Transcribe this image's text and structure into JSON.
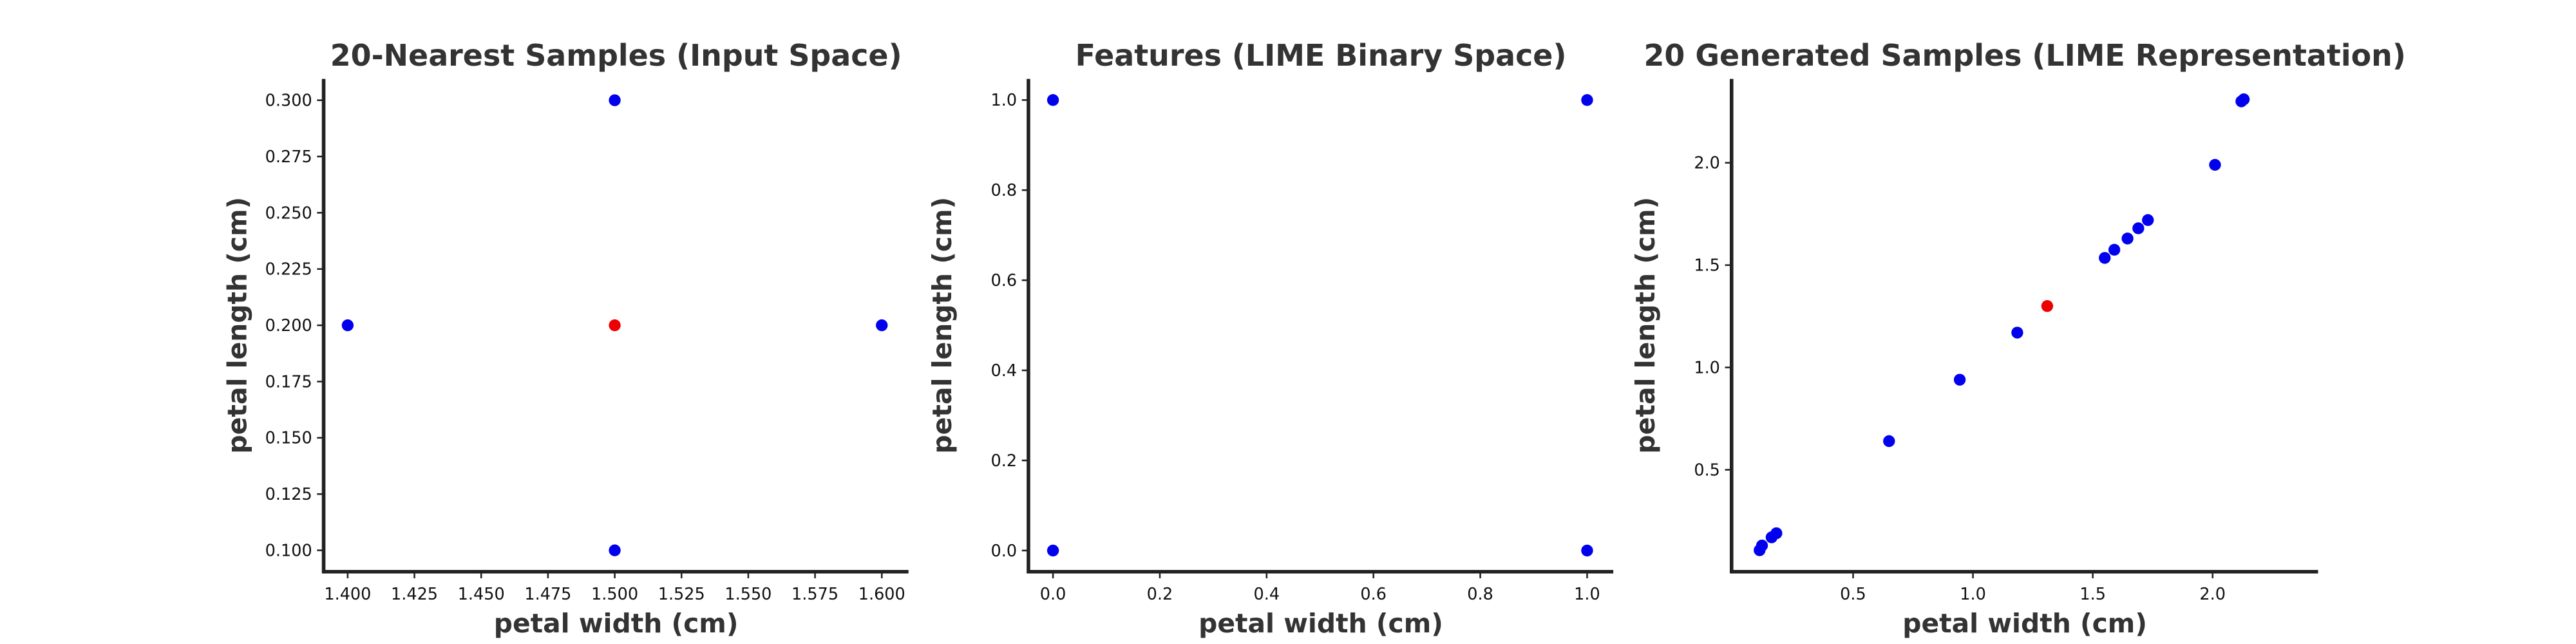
{
  "chart_data": [
    {
      "type": "scatter",
      "title": "20-Nearest Samples (Input Space)",
      "x_label": "petal width (cm)",
      "y_label": "petal length (cm)",
      "xlim": [
        1.391,
        1.61
      ],
      "ylim": [
        0.0905,
        0.3095
      ],
      "xticks": [
        {
          "value": 1.4,
          "label": "1.400"
        },
        {
          "value": 1.425,
          "label": "1.425"
        },
        {
          "value": 1.45,
          "label": "1.450"
        },
        {
          "value": 1.475,
          "label": "1.475"
        },
        {
          "value": 1.5,
          "label": "1.500"
        },
        {
          "value": 1.525,
          "label": "1.525"
        },
        {
          "value": 1.55,
          "label": "1.550"
        },
        {
          "value": 1.575,
          "label": "1.575"
        },
        {
          "value": 1.6,
          "label": "1.600"
        }
      ],
      "yticks": [
        {
          "value": 0.1,
          "label": "0.100"
        },
        {
          "value": 0.125,
          "label": "0.125"
        },
        {
          "value": 0.15,
          "label": "0.150"
        },
        {
          "value": 0.175,
          "label": "0.175"
        },
        {
          "value": 0.2,
          "label": "0.200"
        },
        {
          "value": 0.225,
          "label": "0.225"
        },
        {
          "value": 0.25,
          "label": "0.250"
        },
        {
          "value": 0.275,
          "label": "0.275"
        },
        {
          "value": 0.3,
          "label": "0.300"
        }
      ],
      "series": [
        {
          "color": "#0000ee",
          "x": [
            1.5,
            1.4,
            1.6,
            1.5
          ],
          "values": [
            0.3,
            0.2,
            0.2,
            0.1
          ]
        },
        {
          "color": "#ee0000",
          "x": [
            1.5
          ],
          "values": [
            0.2
          ]
        }
      ]
    },
    {
      "type": "scatter",
      "title": "Features (LIME Binary Space)",
      "x_label": "petal width (cm)",
      "y_label": "petal length (cm)",
      "xlim": [
        -0.046,
        1.049
      ],
      "ylim": [
        -0.047,
        1.047
      ],
      "xticks": [
        {
          "value": 0,
          "label": "0.0"
        },
        {
          "value": 0.2,
          "label": "0.2"
        },
        {
          "value": 0.4,
          "label": "0.4"
        },
        {
          "value": 0.6,
          "label": "0.6"
        },
        {
          "value": 0.8,
          "label": "0.8"
        },
        {
          "value": 1,
          "label": "1.0"
        }
      ],
      "yticks": [
        {
          "value": 0,
          "label": "0.0"
        },
        {
          "value": 0.2,
          "label": "0.2"
        },
        {
          "value": 0.4,
          "label": "0.4"
        },
        {
          "value": 0.6,
          "label": "0.6"
        },
        {
          "value": 0.8,
          "label": "0.8"
        },
        {
          "value": 1,
          "label": "1.0"
        }
      ],
      "series": [
        {
          "color": "#0000ee",
          "x": [
            0,
            1,
            0,
            1
          ],
          "values": [
            1,
            1,
            0,
            0
          ]
        }
      ]
    },
    {
      "type": "scatter",
      "title": "20 Generated Samples (LIME Representation)",
      "x_label": "petal width (cm)",
      "y_label": "petal length (cm)",
      "xlim": [
        -0.007,
        2.44
      ],
      "ylim": [
        0.002,
        2.41
      ],
      "xticks": [
        0.5,
        {
          "value": 1,
          "label": "1.0"
        },
        1.5,
        {
          "value": 2,
          "label": "2.0"
        }
      ],
      "yticks": [
        0.5,
        {
          "value": 1,
          "label": "1.0"
        },
        1.5,
        {
          "value": 2,
          "label": "2.0"
        }
      ],
      "series": [
        {
          "color": "#0000ee",
          "x": [
            0.11,
            0.12,
            0.16,
            0.18,
            0.65,
            0.945,
            1.185,
            1.55,
            1.59,
            1.645,
            1.69,
            1.73,
            2.01,
            2.12,
            2.13
          ],
          "values": [
            0.107,
            0.13,
            0.17,
            0.19,
            0.64,
            0.94,
            1.17,
            1.535,
            1.575,
            1.63,
            1.68,
            1.72,
            1.99,
            2.3,
            2.31
          ]
        },
        {
          "color": "#ee0000",
          "x": [
            1.31
          ],
          "values": [
            1.3
          ]
        }
      ]
    }
  ]
}
